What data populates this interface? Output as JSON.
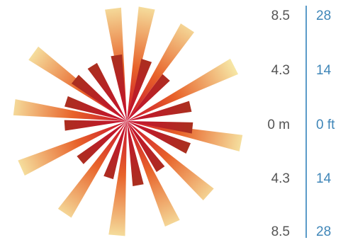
{
  "colors": {
    "ray_inner": "#c8102e",
    "ray_mid": "#e8632a",
    "ray_outer": "#f6e7a6",
    "short_ray_inner": "#c8102e",
    "short_ray_outer": "#a8321e",
    "scale_line": "#5b9bc8",
    "metric_text": "#555555",
    "imperial_text": "#3f86b8"
  },
  "scale": {
    "metric_labels": [
      "8.5",
      "4.3",
      "0 m",
      "4.3",
      "8.5"
    ],
    "imperial_labels": [
      "28",
      "14",
      "0 ft",
      "14",
      "28"
    ]
  }
}
